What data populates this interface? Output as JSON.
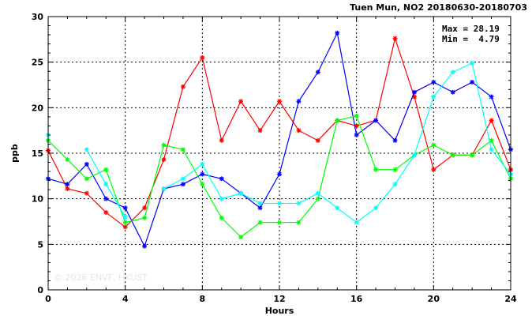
{
  "chart_data": {
    "type": "line",
    "title": "Tuen Mun, NO2 20180630-20180703",
    "xlabel": "Hours",
    "ylabel": "ppb",
    "xlim": [
      0,
      24
    ],
    "ylim": [
      0,
      30
    ],
    "x_ticks": [
      "0",
      "4",
      "8",
      "12",
      "16",
      "20",
      "24"
    ],
    "y_ticks": [
      "0",
      "5",
      "10",
      "15",
      "20",
      "25",
      "30"
    ],
    "grid": true,
    "legend": "none",
    "stats": {
      "max": "Max = 28.19",
      "min": "Min =  4.79"
    },
    "watermark": "© 2026  ENVF, HKUST",
    "x": [
      0,
      1,
      2,
      3,
      4,
      5,
      6,
      7,
      8,
      9,
      10,
      11,
      12,
      13,
      14,
      15,
      16,
      17,
      18,
      19,
      20,
      21,
      22,
      23,
      24
    ],
    "series": [
      {
        "color": "#ff0000",
        "values": [
          15.3,
          11.1,
          10.6,
          8.5,
          6.9,
          9.0,
          14.3,
          22.3,
          25.5,
          16.4,
          20.7,
          17.5,
          20.7,
          17.5,
          16.4,
          18.6,
          18.0,
          18.6,
          27.6,
          21.2,
          13.2,
          14.8,
          14.8,
          18.6,
          13.2
        ]
      },
      {
        "color": "#0000ff",
        "values": [
          12.2,
          11.6,
          13.8,
          10.0,
          9.0,
          4.8,
          11.1,
          11.6,
          12.7,
          12.2,
          10.6,
          9.0,
          12.7,
          20.7,
          23.9,
          28.2,
          17.0,
          18.6,
          16.4,
          21.7,
          22.8,
          21.7,
          22.8,
          21.2,
          15.4
        ]
      },
      {
        "color": "#00ff00",
        "values": [
          16.4,
          14.3,
          12.2,
          13.2,
          7.4,
          7.9,
          15.9,
          15.4,
          11.6,
          7.9,
          5.8,
          7.4,
          7.4,
          7.4,
          10.0,
          18.6,
          19.1,
          13.2,
          13.2,
          14.8,
          15.9,
          14.8,
          14.8,
          16.4,
          12.2
        ]
      },
      {
        "color": "#00ffff",
        "values": [
          17.0,
          null,
          15.4,
          11.6,
          8.0,
          null,
          11.1,
          12.2,
          13.8,
          10.0,
          10.6,
          9.5,
          9.5,
          9.5,
          10.6,
          9.0,
          7.4,
          9.0,
          11.6,
          14.8,
          21.2,
          23.9,
          24.9,
          15.4,
          12.7
        ]
      }
    ]
  }
}
